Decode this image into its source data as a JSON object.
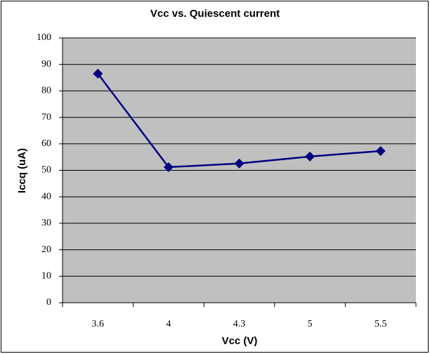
{
  "chart_data": {
    "type": "line",
    "title": "Vcc vs. Quiescent current",
    "x_label": "Vcc (V)",
    "y_label": "Iccq (uA)",
    "categories": [
      "3.6",
      "4",
      "4.3",
      "5",
      "5.5"
    ],
    "series": [
      {
        "name": "Iccq",
        "color": "#000080",
        "values": [
          86.5,
          51.2,
          52.6,
          55.2,
          57.3
        ]
      }
    ],
    "ylim": [
      0,
      100
    ],
    "yticks": [
      0,
      10,
      20,
      30,
      40,
      50,
      60,
      70,
      80,
      90,
      100
    ],
    "grid": true,
    "plot_background": "#c0c0c0"
  }
}
